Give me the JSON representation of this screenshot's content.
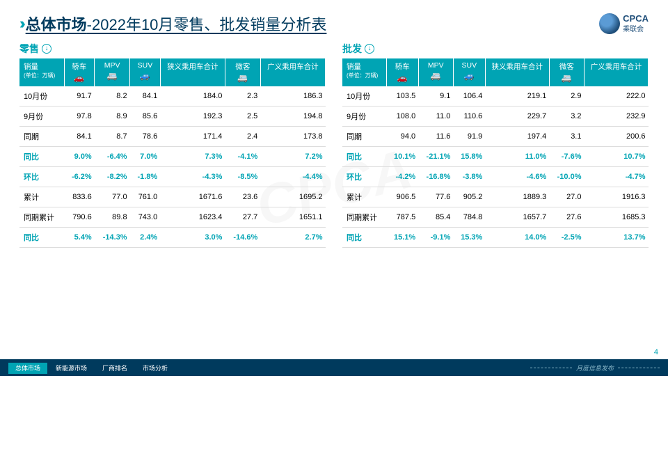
{
  "title": {
    "main": "总体市场",
    "sub": "-2022年10月零售、批发销量分析表"
  },
  "logo": {
    "en": "CPCA",
    "cn": "乘联会"
  },
  "columns": [
    {
      "label": "销量",
      "sub": "(单位：万辆)"
    },
    {
      "label": "轿车",
      "icon": "🚗"
    },
    {
      "label": "MPV",
      "icon": "🚐"
    },
    {
      "label": "SUV",
      "icon": "🚙"
    },
    {
      "label": "狭义乘用车合计"
    },
    {
      "label": "微客",
      "icon": "🚐"
    },
    {
      "label": "广义乘用车合计"
    }
  ],
  "panels": [
    {
      "title": "零售",
      "rows": [
        {
          "label": "10月份",
          "vals": [
            "91.7",
            "8.2",
            "84.1",
            "184.0",
            "2.3",
            "186.3"
          ],
          "teal": false
        },
        {
          "label": "9月份",
          "vals": [
            "97.8",
            "8.9",
            "85.6",
            "192.3",
            "2.5",
            "194.8"
          ],
          "teal": false
        },
        {
          "label": "同期",
          "vals": [
            "84.1",
            "8.7",
            "78.6",
            "171.4",
            "2.4",
            "173.8"
          ],
          "teal": false
        },
        {
          "label": "同比",
          "vals": [
            "9.0%",
            "-6.4%",
            "7.0%",
            "7.3%",
            "-4.1%",
            "7.2%"
          ],
          "teal": true
        },
        {
          "label": "环比",
          "vals": [
            "-6.2%",
            "-8.2%",
            "-1.8%",
            "-4.3%",
            "-8.5%",
            "-4.4%"
          ],
          "teal": true
        },
        {
          "label": "累计",
          "vals": [
            "833.6",
            "77.0",
            "761.0",
            "1671.6",
            "23.6",
            "1695.2"
          ],
          "teal": false
        },
        {
          "label": "同期累计",
          "vals": [
            "790.6",
            "89.8",
            "743.0",
            "1623.4",
            "27.7",
            "1651.1"
          ],
          "teal": false
        },
        {
          "label": "同比",
          "vals": [
            "5.4%",
            "-14.3%",
            "2.4%",
            "3.0%",
            "-14.6%",
            "2.7%"
          ],
          "teal": true
        }
      ]
    },
    {
      "title": "批发",
      "rows": [
        {
          "label": "10月份",
          "vals": [
            "103.5",
            "9.1",
            "106.4",
            "219.1",
            "2.9",
            "222.0"
          ],
          "teal": false
        },
        {
          "label": "9月份",
          "vals": [
            "108.0",
            "11.0",
            "110.6",
            "229.7",
            "3.2",
            "232.9"
          ],
          "teal": false
        },
        {
          "label": "同期",
          "vals": [
            "94.0",
            "11.6",
            "91.9",
            "197.4",
            "3.1",
            "200.6"
          ],
          "teal": false
        },
        {
          "label": "同比",
          "vals": [
            "10.1%",
            "-21.1%",
            "15.8%",
            "11.0%",
            "-7.6%",
            "10.7%"
          ],
          "teal": true
        },
        {
          "label": "环比",
          "vals": [
            "-4.2%",
            "-16.8%",
            "-3.8%",
            "-4.6%",
            "-10.0%",
            "-4.7%"
          ],
          "teal": true
        },
        {
          "label": "累计",
          "vals": [
            "906.5",
            "77.6",
            "905.2",
            "1889.3",
            "27.0",
            "1916.3"
          ],
          "teal": false
        },
        {
          "label": "同期累计",
          "vals": [
            "787.5",
            "85.4",
            "784.8",
            "1657.7",
            "27.6",
            "1685.3"
          ],
          "teal": false
        },
        {
          "label": "同比",
          "vals": [
            "15.1%",
            "-9.1%",
            "15.3%",
            "14.0%",
            "-2.5%",
            "13.7%"
          ],
          "teal": true
        }
      ]
    }
  ],
  "footer": {
    "tabs": [
      "总体市场",
      "新能源市场",
      "厂商排名",
      "市场分析"
    ],
    "right": "月度信息发布",
    "page": "4"
  },
  "colors": {
    "teal": "#00A4B4",
    "navy": "#003A5D"
  }
}
